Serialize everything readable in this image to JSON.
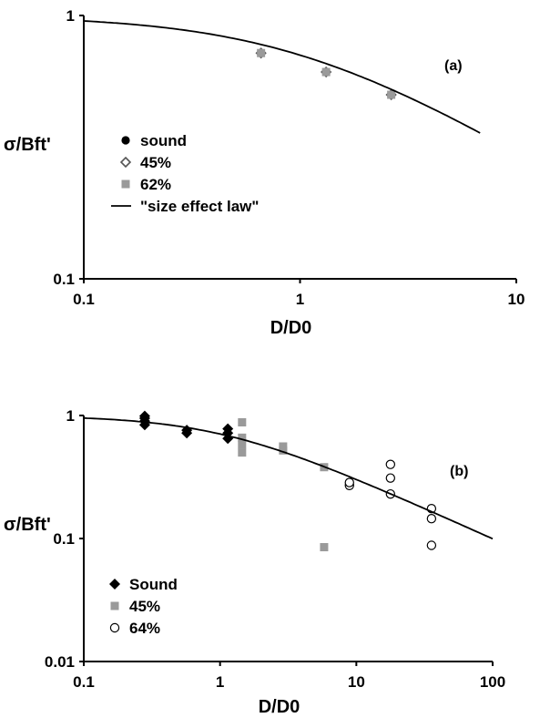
{
  "chart_data": [
    {
      "type": "line",
      "panel_label": "(a)",
      "xlabel": "D/D0",
      "ylabel": "σ/Bft'",
      "log_x": true,
      "log_y": true,
      "xlim": [
        0.1,
        10
      ],
      "ylim": [
        0.1,
        1
      ],
      "x_ticks": [
        {
          "value": 0.1,
          "label": "0.1"
        },
        {
          "value": 1,
          "label": "1"
        },
        {
          "value": 10,
          "label": "10"
        }
      ],
      "y_ticks": [
        {
          "value": 0.1,
          "label": "0.1"
        },
        {
          "value": 1,
          "label": "1"
        }
      ],
      "legend_position": "left-middle",
      "series": [
        {
          "name": "sound",
          "marker": "circle-filled",
          "color": "#000000",
          "points": [
            [
              0.66,
              0.72
            ],
            [
              1.32,
              0.61
            ],
            [
              2.64,
              0.5
            ]
          ]
        },
        {
          "name": "45%",
          "marker": "diamond-open",
          "color": "#555555",
          "points": [
            [
              0.66,
              0.72
            ],
            [
              1.32,
              0.61
            ],
            [
              2.64,
              0.5
            ]
          ]
        },
        {
          "name": "62%",
          "marker": "square-filled",
          "color": "#9a9a9a",
          "points": [
            [
              0.66,
              0.72
            ],
            [
              1.32,
              0.61
            ],
            [
              2.64,
              0.5
            ]
          ]
        },
        {
          "name": "\"size effect law\"",
          "marker": "line",
          "color": "#000000",
          "law": "1/sqrt(1+x)",
          "x_range": [
            0.1,
            6.8
          ]
        }
      ]
    },
    {
      "type": "line",
      "panel_label": "(b)",
      "xlabel": "D/D0",
      "ylabel": "σ/Bft'",
      "log_x": true,
      "log_y": true,
      "xlim": [
        0.1,
        100
      ],
      "ylim": [
        0.01,
        1
      ],
      "x_ticks": [
        {
          "value": 0.1,
          "label": "0.1"
        },
        {
          "value": 1,
          "label": "1"
        },
        {
          "value": 10,
          "label": "10"
        },
        {
          "value": 100,
          "label": "100"
        }
      ],
      "y_ticks": [
        {
          "value": 0.01,
          "label": "0.01"
        },
        {
          "value": 0.1,
          "label": "0.1"
        },
        {
          "value": 1,
          "label": "1"
        }
      ],
      "legend_position": "bottom-left",
      "series": [
        {
          "name": "Sound",
          "marker": "diamond-filled",
          "color": "#000000",
          "points": [
            [
              0.28,
              0.84
            ],
            [
              0.28,
              0.9
            ],
            [
              0.28,
              0.95
            ],
            [
              0.28,
              0.99
            ],
            [
              0.57,
              0.72
            ],
            [
              0.57,
              0.76
            ],
            [
              1.14,
              0.65
            ],
            [
              1.14,
              0.72
            ],
            [
              1.14,
              0.78
            ]
          ]
        },
        {
          "name": "45%",
          "marker": "square-filled",
          "color": "#9a9a9a",
          "points": [
            [
              1.45,
              0.5
            ],
            [
              1.45,
              0.58
            ],
            [
              1.45,
              0.66
            ],
            [
              1.45,
              0.88
            ],
            [
              2.9,
              0.52
            ],
            [
              2.9,
              0.56
            ],
            [
              5.8,
              0.38
            ],
            [
              5.8,
              0.085
            ]
          ]
        },
        {
          "name": "64%",
          "marker": "circle-open",
          "color": "#000000",
          "points": [
            [
              8.9,
              0.27
            ],
            [
              8.9,
              0.285
            ],
            [
              17.8,
              0.4
            ],
            [
              17.8,
              0.31
            ],
            [
              17.8,
              0.23
            ],
            [
              35.6,
              0.175
            ],
            [
              35.6,
              0.145
            ],
            [
              35.6,
              0.088
            ]
          ]
        },
        {
          "name": "",
          "marker": "line",
          "color": "#000000",
          "law": "1/sqrt(1+x)",
          "x_range": [
            0.1,
            100
          ]
        }
      ]
    }
  ]
}
